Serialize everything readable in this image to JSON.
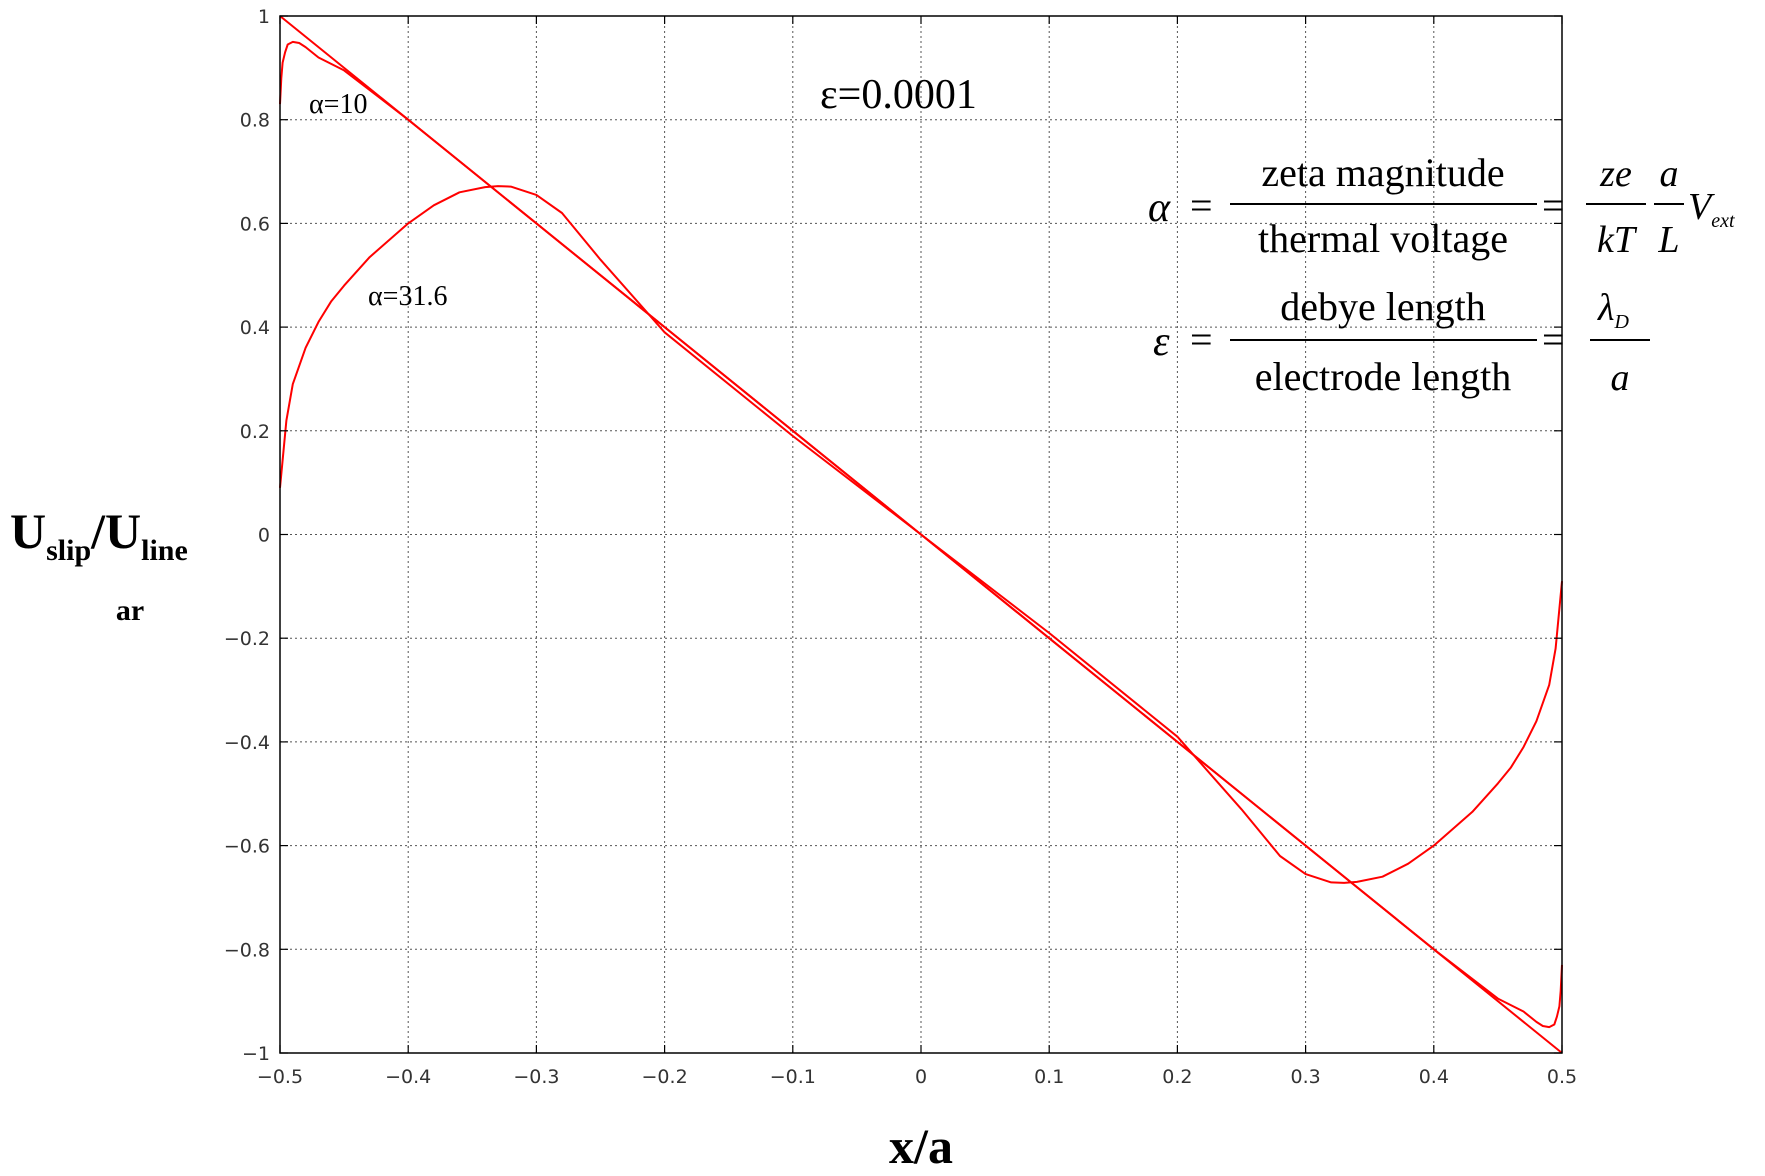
{
  "chart_data": {
    "type": "line",
    "xlabel": "x/a",
    "ylabel": {
      "main": "U",
      "sub1": "slip",
      "mid": "/U",
      "sub2": "line",
      "wrap": "ar"
    },
    "xlim": [
      -0.5,
      0.5
    ],
    "ylim": [
      -1,
      1
    ],
    "grid": true,
    "xticks": [
      "−0.5",
      "−0.4",
      "−0.3",
      "−0.2",
      "−0.1",
      "0",
      "0.1",
      "0.2",
      "0.3",
      "0.4",
      "0.5"
    ],
    "xtick_values": [
      -0.5,
      -0.4,
      -0.3,
      -0.2,
      -0.1,
      0,
      0.1,
      0.2,
      0.3,
      0.4,
      0.5
    ],
    "yticks": [
      "1",
      "0.8",
      "0.6",
      "0.4",
      "0.2",
      "0",
      "−0.2",
      "−0.4",
      "−0.6",
      "−0.8",
      "−1"
    ],
    "ytick_values": [
      1,
      0.8,
      0.6,
      0.4,
      0.2,
      0,
      -0.2,
      -0.4,
      -0.6,
      -0.8,
      -1
    ],
    "line_color": "#ff0000",
    "series": [
      {
        "x": [
          -0.5,
          -0.499,
          -0.498,
          -0.496,
          -0.494,
          -0.49,
          -0.485,
          -0.48,
          -0.47,
          -0.45,
          -0.4,
          -0.3,
          -0.2,
          -0.1,
          0,
          0.1,
          0.2,
          0.3,
          0.4,
          0.45,
          0.47,
          0.48,
          0.485,
          0.49,
          0.494,
          0.496,
          0.498,
          0.499,
          0.5
        ],
        "y": [
          0.83,
          0.88,
          0.91,
          0.93,
          0.945,
          0.95,
          0.948,
          0.94,
          0.92,
          0.895,
          0.8,
          0.6,
          0.4,
          0.2,
          0,
          -0.2,
          -0.4,
          -0.6,
          -0.8,
          -0.895,
          -0.92,
          -0.94,
          -0.948,
          -0.95,
          -0.945,
          -0.93,
          -0.91,
          -0.88,
          -0.83
        ]
      },
      {
        "x": [
          -0.5,
          -0.495,
          -0.49,
          -0.48,
          -0.47,
          -0.46,
          -0.45,
          -0.43,
          -0.4,
          -0.38,
          -0.36,
          -0.34,
          -0.33,
          -0.32,
          -0.3,
          -0.28,
          -0.25,
          -0.2,
          -0.1,
          0,
          0.1,
          0.2,
          0.25,
          0.28,
          0.3,
          0.32,
          0.33,
          0.34,
          0.36,
          0.38,
          0.4,
          0.43,
          0.45,
          0.46,
          0.47,
          0.48,
          0.49,
          0.495,
          0.5
        ],
        "y": [
          0.09,
          0.22,
          0.29,
          0.36,
          0.41,
          0.45,
          0.48,
          0.535,
          0.6,
          0.635,
          0.66,
          0.67,
          0.672,
          0.671,
          0.655,
          0.62,
          0.53,
          0.39,
          0.19,
          0,
          -0.19,
          -0.39,
          -0.53,
          -0.62,
          -0.655,
          -0.671,
          -0.672,
          -0.67,
          -0.66,
          -0.635,
          -0.6,
          -0.535,
          -0.48,
          -0.45,
          -0.41,
          -0.36,
          -0.29,
          -0.22,
          -0.09
        ]
      },
      {
        "x": [
          -0.5,
          0.5
        ],
        "y": [
          1,
          -1
        ]
      }
    ]
  },
  "annotations": {
    "alpha10": "α=10",
    "alpha316": "α=31.6",
    "epsilon": "ε=0.0001"
  },
  "formulas": {
    "alpha_symbol": "α",
    "alpha_num": "zeta magnitude",
    "alpha_den": "thermal voltage",
    "ze": "ze",
    "kT": "kT",
    "a": "a",
    "L": "L",
    "V": "V",
    "ext": "ext",
    "eps_symbol": "ε",
    "eps_num": "debye length",
    "eps_den": "electrode length",
    "lambda": "λ",
    "D": "D",
    "a2": "a",
    "equals": "="
  }
}
